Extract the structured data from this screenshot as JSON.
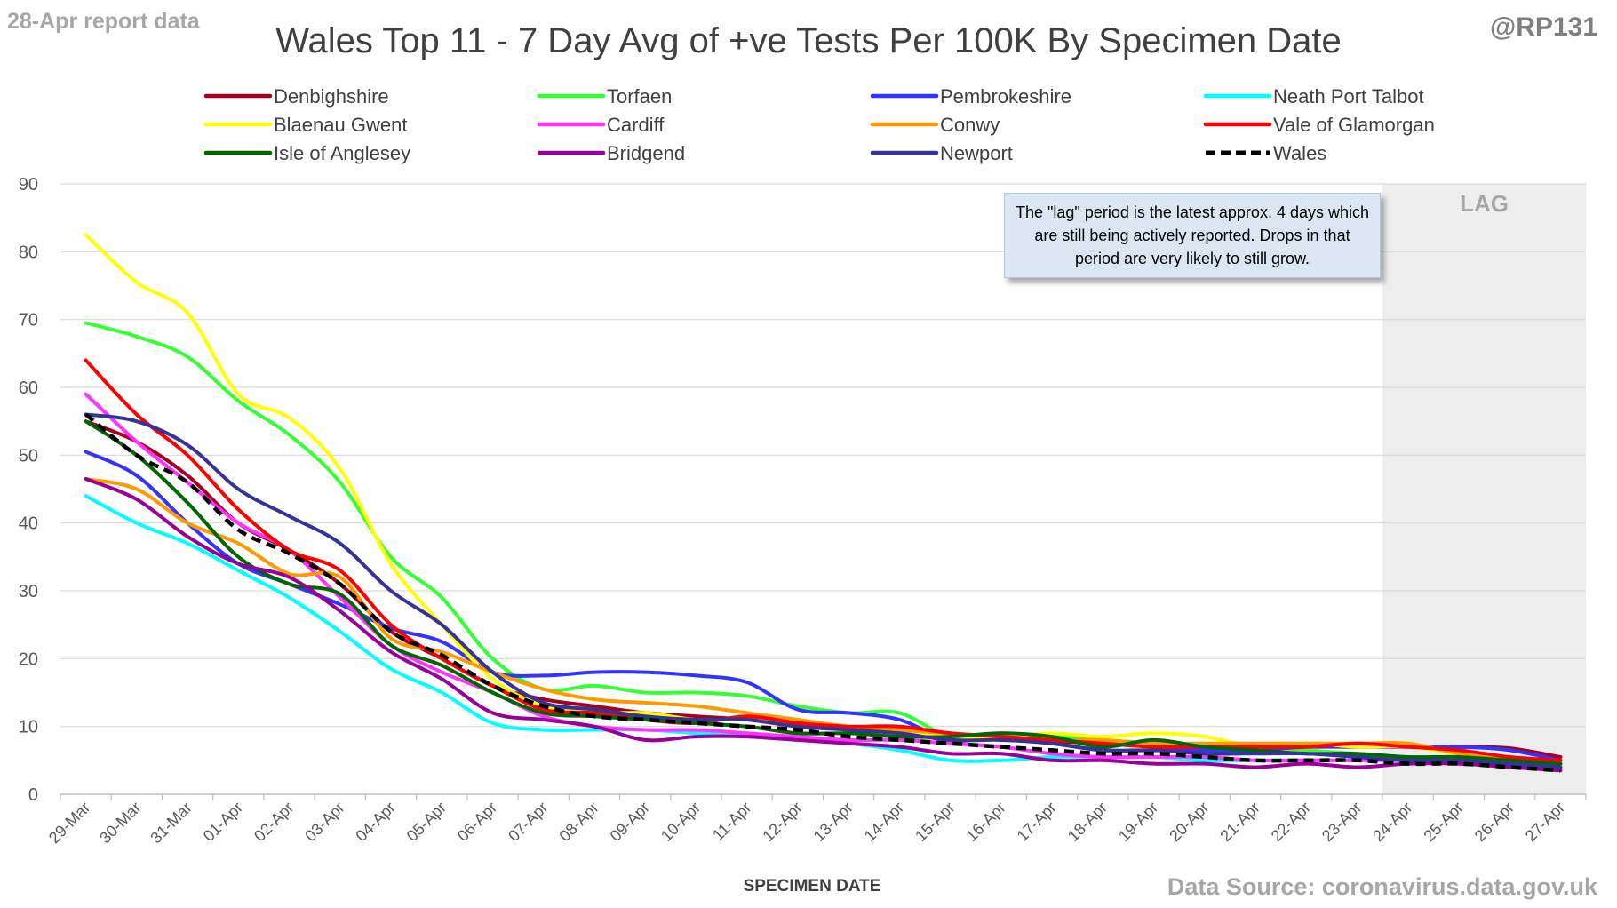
{
  "header": {
    "report_label": "28-Apr report data",
    "handle": "@RP131",
    "source": "Data Source: coronavirus.data.gov.uk"
  },
  "annotation": {
    "note": "The \"lag\" period is the latest approx. 4 days which are still being actively reported. Drops in that period are very likely to still grow.",
    "lag_label": "LAG"
  },
  "chart_data": {
    "type": "line",
    "title": "Wales Top 11 - 7 Day Avg of +ve Tests Per 100K By Specimen Date",
    "xlabel": "SPECIMEN DATE",
    "ylabel": "",
    "ylim": [
      0,
      90
    ],
    "yticks": [
      0,
      10,
      20,
      30,
      40,
      50,
      60,
      70,
      80,
      90
    ],
    "grid": true,
    "legend_position": "top",
    "lag_region": {
      "from": "24-Apr",
      "to": "27-Apr"
    },
    "categories": [
      "29-Mar",
      "30-Mar",
      "31-Mar",
      "01-Apr",
      "02-Apr",
      "03-Apr",
      "04-Apr",
      "05-Apr",
      "06-Apr",
      "07-Apr",
      "08-Apr",
      "09-Apr",
      "10-Apr",
      "11-Apr",
      "12-Apr",
      "13-Apr",
      "14-Apr",
      "15-Apr",
      "16-Apr",
      "17-Apr",
      "18-Apr",
      "19-Apr",
      "20-Apr",
      "21-Apr",
      "22-Apr",
      "23-Apr",
      "24-Apr",
      "25-Apr",
      "26-Apr",
      "27-Apr"
    ],
    "series": [
      {
        "name": "Denbighshire",
        "color": "#a50021",
        "dash": false,
        "values": [
          55,
          52,
          47,
          40,
          36,
          31,
          24,
          20,
          16,
          14,
          13,
          12,
          11.5,
          11,
          10,
          9.5,
          9,
          8.5,
          8,
          7.8,
          7.5,
          7.5,
          7.3,
          7,
          7,
          7,
          7,
          7,
          6.8,
          5.5
        ]
      },
      {
        "name": "Torfaen",
        "color": "#33ff33",
        "dash": false,
        "values": [
          69.5,
          67.5,
          64.5,
          58,
          53,
          46,
          35,
          29,
          20,
          15.5,
          16,
          15,
          15,
          14.5,
          13,
          12,
          12,
          8.5,
          9,
          8.5,
          8,
          7.5,
          7,
          7,
          6.5,
          6,
          5.5,
          5.5,
          5,
          4.5
        ]
      },
      {
        "name": "Pembrokeshire",
        "color": "#3333ff",
        "dash": false,
        "values": [
          50.5,
          47,
          40,
          34,
          31,
          28,
          24.5,
          22.5,
          18,
          17.5,
          18,
          18,
          17.5,
          16.5,
          12.5,
          12,
          11,
          8,
          8.5,
          7.5,
          6.5,
          6.5,
          6.5,
          6.5,
          7,
          7,
          7,
          7,
          6.5,
          5
        ]
      },
      {
        "name": "Neath Port Talbot",
        "color": "#00ffff",
        "dash": false,
        "values": [
          44,
          40,
          37,
          33,
          29,
          24,
          18.5,
          15,
          10.5,
          9.5,
          9.5,
          9.5,
          9,
          8.5,
          8,
          7.5,
          6.5,
          5,
          5,
          5.5,
          5.5,
          5.5,
          5,
          5,
          5,
          5,
          5,
          5,
          4.5,
          4
        ]
      },
      {
        "name": "Blaenau Gwent",
        "color": "#ffff00",
        "dash": false,
        "values": [
          82.5,
          75.5,
          71,
          59,
          55.5,
          48,
          34,
          25,
          17,
          13,
          12,
          12,
          11,
          11,
          10,
          9.5,
          9,
          8.5,
          8.5,
          9,
          8.5,
          9,
          8.5,
          7,
          7.5,
          7,
          7,
          6,
          5.5,
          4.5
        ]
      },
      {
        "name": "Cardiff",
        "color": "#ff33ff",
        "dash": false,
        "values": [
          59,
          52,
          46,
          40,
          36,
          29,
          22,
          18,
          15,
          11.5,
          10,
          9.5,
          9.5,
          9,
          8.5,
          8,
          8,
          7.5,
          7,
          6,
          5.5,
          5.5,
          5.5,
          5,
          5,
          5,
          5,
          4.5,
          4.5,
          4
        ]
      },
      {
        "name": "Conwy",
        "color": "#ff9900",
        "dash": false,
        "values": [
          46.5,
          45,
          40,
          37,
          32.5,
          32,
          23,
          21,
          18,
          15.5,
          14,
          13.5,
          13,
          12,
          11,
          10,
          9.5,
          9,
          8.5,
          8,
          8,
          7.5,
          7.5,
          7.5,
          7.5,
          7.5,
          7.5,
          6,
          5,
          4.5
        ]
      },
      {
        "name": "Vale of Glamorgan",
        "color": "#ff0000",
        "dash": false,
        "values": [
          64,
          56,
          50,
          42,
          36,
          33,
          25,
          20,
          16,
          12.5,
          12,
          11,
          10.5,
          11.5,
          10.5,
          10,
          10,
          9,
          8.5,
          8,
          7.5,
          7,
          7,
          7,
          7,
          7.5,
          7,
          6.5,
          5.5,
          5
        ]
      },
      {
        "name": "Isle of Anglesey",
        "color": "#006600",
        "dash": false,
        "values": [
          55,
          50,
          43,
          35,
          31,
          29.5,
          22,
          19,
          15,
          12,
          11.5,
          11,
          10.5,
          10,
          9,
          9,
          8.5,
          8.5,
          9,
          8.5,
          7,
          8,
          7,
          6.5,
          6,
          6,
          5.5,
          5.5,
          5,
          4.5
        ]
      },
      {
        "name": "Bridgend",
        "color": "#990099",
        "dash": false,
        "values": [
          46.5,
          43.5,
          38,
          34,
          32,
          27,
          21,
          17,
          12,
          11,
          10,
          8,
          8.5,
          8.5,
          8,
          7.5,
          7,
          6,
          6,
          5,
          5,
          4.5,
          4.5,
          4,
          4.5,
          4,
          4.5,
          4.5,
          4,
          3.5
        ]
      },
      {
        "name": "Newport",
        "color": "#333399",
        "dash": false,
        "values": [
          56,
          55,
          51.5,
          45,
          41,
          37,
          30,
          25,
          18,
          13.5,
          12.5,
          11.5,
          11,
          11,
          10,
          9.5,
          9,
          8,
          8,
          7.5,
          6.5,
          6.5,
          6,
          6,
          6,
          5.5,
          5,
          5,
          4.5,
          4
        ]
      },
      {
        "name": "Wales",
        "color": "#000000",
        "dash": true,
        "values": [
          56,
          50,
          46,
          39,
          35.5,
          31,
          24,
          20.5,
          16,
          13,
          11.5,
          11,
          10.5,
          10,
          9.5,
          8.5,
          8,
          7.5,
          7,
          6.5,
          6,
          6,
          5.5,
          5,
          5,
          5,
          4.5,
          4.5,
          4,
          3.5
        ]
      }
    ]
  }
}
